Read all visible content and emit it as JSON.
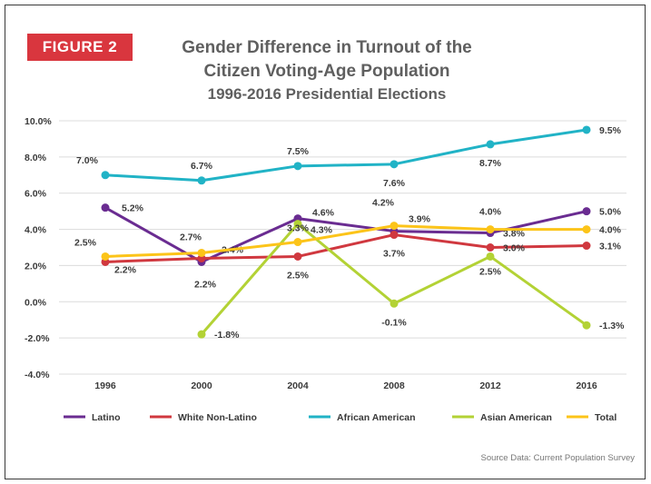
{
  "badge": "FIGURE 2",
  "title_lines": [
    "Gender Difference in Turnout of the",
    "Citizen Voting-Age Population",
    "1996-2016 Presidential Elections"
  ],
  "source": "Source Data: Current Population Survey",
  "colors": {
    "latino": "#6a2c91",
    "white": "#d0383f",
    "african": "#21b3c6",
    "asian": "#b3d235",
    "total": "#fcc419",
    "badge": "#d9363e"
  },
  "chart_data": {
    "type": "line",
    "title": "Gender Difference in Turnout of the Citizen Voting-Age Population 1996-2016 Presidential Elections",
    "xlabel": "",
    "ylabel": "",
    "categories": [
      "1996",
      "2000",
      "2004",
      "2008",
      "2012",
      "2016"
    ],
    "ylim": [
      -4,
      10
    ],
    "yticks": [
      "10.0%",
      "8.0%",
      "6.0%",
      "4.0%",
      "2.0%",
      "0.0%",
      "-2.0%",
      "-4.0%"
    ],
    "grid": true,
    "legend_position": "bottom",
    "series": [
      {
        "name": "Latino",
        "color": "#6a2c91",
        "values": [
          5.2,
          2.2,
          4.6,
          3.9,
          3.8,
          5.0
        ],
        "labels": [
          "5.2%",
          "2.2%",
          "4.6%",
          "3.9%",
          "3.8%",
          "5.0%"
        ]
      },
      {
        "name": "White Non-Latino",
        "color": "#d0383f",
        "values": [
          2.2,
          2.4,
          2.5,
          3.7,
          3.0,
          3.1
        ],
        "labels": [
          "2.2%",
          "2.4%",
          "2.5%",
          "3.7%",
          "3.0%",
          "3.1%"
        ]
      },
      {
        "name": "African American",
        "color": "#21b3c6",
        "values": [
          7.0,
          6.7,
          7.5,
          7.6,
          8.7,
          9.5
        ],
        "labels": [
          "7.0%",
          "6.7%",
          "7.5%",
          "7.6%",
          "8.7%",
          "9.5%"
        ]
      },
      {
        "name": "Asian American",
        "color": "#b3d235",
        "values": [
          null,
          -1.8,
          4.3,
          -0.1,
          2.5,
          -1.3
        ],
        "labels": [
          null,
          "-1.8%",
          "4.3%",
          "-0.1%",
          "2.5%",
          "-1.3%"
        ]
      },
      {
        "name": "Total",
        "color": "#fcc419",
        "values": [
          2.5,
          2.7,
          3.3,
          4.2,
          4.0,
          4.0
        ],
        "labels": [
          "2.5%",
          "2.7%",
          "3.3%",
          "4.2%",
          "4.0%",
          "4.0%"
        ]
      }
    ]
  }
}
